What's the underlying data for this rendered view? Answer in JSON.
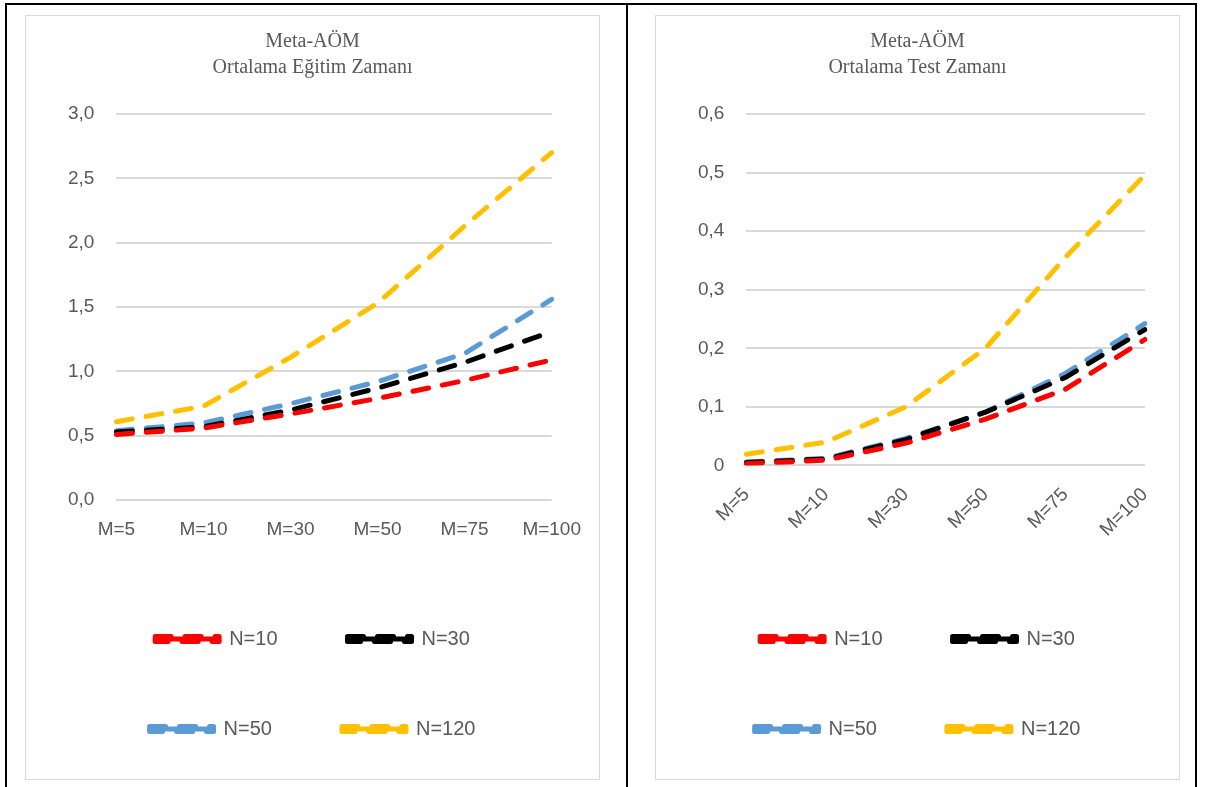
{
  "chart_data": [
    {
      "type": "line",
      "title": "Meta-AÖM",
      "subtitle": "Ortalama Eğitim Zamanı",
      "categories": [
        "M=5",
        "M=10",
        "M=30",
        "M=50",
        "M=75",
        "M=100"
      ],
      "series": [
        {
          "name": "N=10",
          "color": "#ff0000",
          "values": [
            0.51,
            0.56,
            0.67,
            0.79,
            0.93,
            1.09
          ]
        },
        {
          "name": "N=30",
          "color": "#000000",
          "values": [
            0.53,
            0.57,
            0.7,
            0.87,
            1.07,
            1.31
          ]
        },
        {
          "name": "N=50",
          "color": "#5b9bd5",
          "values": [
            0.54,
            0.6,
            0.75,
            0.92,
            1.14,
            1.56
          ]
        },
        {
          "name": "N=120",
          "color": "#ffc000",
          "values": [
            0.61,
            0.73,
            1.11,
            1.53,
            2.13,
            2.7
          ]
        }
      ],
      "ylim": [
        0,
        3
      ],
      "yticks": [
        {
          "value": 0,
          "label": "0,0"
        },
        {
          "value": 0.5,
          "label": "0,5"
        },
        {
          "value": 1,
          "label": "1,0"
        },
        {
          "value": 1.5,
          "label": "1,5"
        },
        {
          "value": 2,
          "label": "2,0"
        },
        {
          "value": 2.5,
          "label": "2,5"
        },
        {
          "value": 3,
          "label": "3,0"
        }
      ],
      "grid": "y",
      "legend": "bottom",
      "line_style": "dashed"
    },
    {
      "type": "line",
      "title": "Meta-AÖM",
      "subtitle": "Ortalama Test Zamanı",
      "categories": [
        "M=5",
        "M=10",
        "M=30",
        "M=50",
        "M=75",
        "M=100"
      ],
      "series": [
        {
          "name": "N=10",
          "color": "#ff0000",
          "values": [
            0.003,
            0.009,
            0.038,
            0.079,
            0.13,
            0.215
          ]
        },
        {
          "name": "N=30",
          "color": "#000000",
          "values": [
            0.005,
            0.011,
            0.044,
            0.091,
            0.15,
            0.232
          ]
        },
        {
          "name": "N=50",
          "color": "#5b9bd5",
          "values": [
            0.006,
            0.012,
            0.046,
            0.091,
            0.157,
            0.242
          ]
        },
        {
          "name": "N=120",
          "color": "#ffc000",
          "values": [
            0.019,
            0.04,
            0.1,
            0.2,
            0.355,
            0.496
          ]
        }
      ],
      "ylim": [
        0,
        0.6
      ],
      "yticks": [
        0,
        {
          "value": 0.1,
          "label": "0,1"
        },
        {
          "value": 0.2,
          "label": "0,2"
        },
        {
          "value": 0.3,
          "label": "0,3"
        },
        {
          "value": 0.4,
          "label": "0,4"
        },
        {
          "value": 0.5,
          "label": "0,5"
        },
        {
          "value": 0.6,
          "label": "0,6"
        }
      ],
      "grid": "y",
      "legend": "bottom",
      "line_style": "dashed"
    }
  ]
}
